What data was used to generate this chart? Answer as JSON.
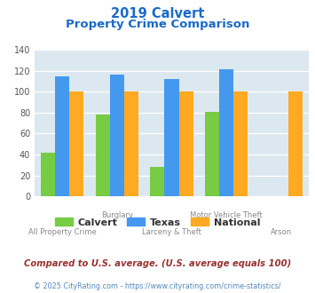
{
  "title_line1": "2019 Calvert",
  "title_line2": "Property Crime Comparison",
  "categories": [
    "All Property Crime",
    "Burglary",
    "Larceny & Theft",
    "Motor Vehicle Theft",
    "Arson"
  ],
  "calvert": [
    42,
    78,
    28,
    81,
    0
  ],
  "texas": [
    115,
    116,
    112,
    121,
    0
  ],
  "national": [
    100,
    100,
    100,
    100,
    100
  ],
  "calvert_color": "#77cc44",
  "texas_color": "#4499ee",
  "national_color": "#ffaa22",
  "ylim": [
    0,
    140
  ],
  "yticks": [
    0,
    20,
    40,
    60,
    80,
    100,
    120,
    140
  ],
  "legend_labels": [
    "Calvert",
    "Texas",
    "National"
  ],
  "footnote1": "Compared to U.S. average. (U.S. average equals 100)",
  "footnote2": "© 2025 CityRating.com - https://www.cityrating.com/crime-statistics/",
  "title_color": "#1a6ac9",
  "footnote1_color": "#993333",
  "footnote2_color": "#5588bb",
  "bg_color": "#dce8f0",
  "fig_bg_color": "#ffffff"
}
